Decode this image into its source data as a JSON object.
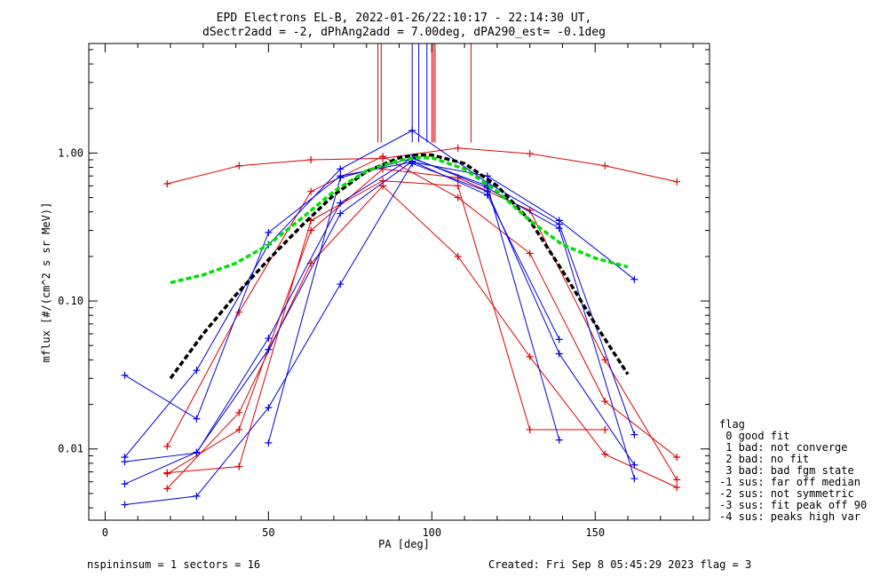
{
  "title": {
    "line1": "EPD Electrons EL-B, 2022-01-26/22:10:17 - 22:14:30 UT,",
    "line2": "dSectr2add = -2, dPhAng2add = 7.00deg, dPA290_est=  -0.1deg"
  },
  "footer": {
    "left": "nspininsum =  1  sectors = 16",
    "right": "Created: Fri Sep  8 05:45:29 2023   flag = 3"
  },
  "legend": {
    "title": "flag",
    "items": [
      " 0 good fit",
      " 1 bad: not converge",
      " 2 bad: no fit",
      " 3 bad: bad fgm state",
      "-1 sus: far off median",
      "-2 sus: not symmetric",
      "-3 sus: fit peak off 90",
      "-4 sus: peaks high var"
    ]
  },
  "chart_data": {
    "type": "line",
    "xlabel": "PA [deg]",
    "ylabel": "mflux [#/(cm^2 s sr MeV)]",
    "xlim": [
      -5,
      185
    ],
    "ylim": [
      0.0033,
      5.5
    ],
    "yscale": "log",
    "xticks": [
      0,
      50,
      100,
      150
    ],
    "yticks": [
      0.01,
      0.1,
      1.0
    ],
    "ytick_labels": [
      "0.01",
      "0.10",
      "1.00"
    ],
    "colors": {
      "red": "#e00000",
      "blue": "#0000e0",
      "black": "#000000",
      "green": "#00e000"
    },
    "series": [
      {
        "color": "red",
        "x": [
          19,
          41,
          63,
          85,
          108,
          130,
          153,
          175
        ],
        "y": [
          0.62,
          0.82,
          0.9,
          0.92,
          1.08,
          0.99,
          0.82,
          0.64
        ]
      },
      {
        "color": "red",
        "x": [
          19,
          41,
          63,
          85,
          108,
          130,
          153,
          175
        ],
        "y": [
          0.0104,
          0.084,
          0.55,
          0.95,
          0.5,
          0.21,
          0.021,
          0.0088
        ]
      },
      {
        "color": "red",
        "x": [
          19,
          41,
          63,
          85,
          108,
          130,
          153,
          175
        ],
        "y": [
          0.0054,
          0.0176,
          0.18,
          0.6,
          0.2,
          0.042,
          0.0092,
          0.0055
        ]
      },
      {
        "color": "red",
        "x": [
          19,
          41,
          63,
          85,
          108,
          130,
          153,
          175
        ],
        "y": [
          0.0068,
          0.0135,
          0.3,
          0.78,
          0.68,
          0.41,
          0.04,
          0.0062
        ]
      },
      {
        "color": "red",
        "x": [
          19,
          41,
          63,
          85,
          108,
          130,
          153
        ],
        "y": [
          0.0069,
          0.0076,
          0.35,
          0.65,
          0.6,
          0.0135,
          0.0135
        ]
      },
      {
        "color": "blue",
        "x": [
          6,
          28,
          50,
          72,
          94,
          117,
          139,
          162
        ],
        "y": [
          0.0315,
          0.016,
          0.29,
          0.7,
          0.87,
          0.7,
          0.35,
          0.14
        ]
      },
      {
        "color": "blue",
        "x": [
          6,
          28,
          50,
          72,
          94,
          117,
          139,
          162
        ],
        "y": [
          0.0088,
          0.034,
          0.24,
          0.78,
          1.42,
          0.63,
          0.33,
          0.0125
        ]
      },
      {
        "color": "blue",
        "x": [
          6,
          28,
          50,
          72,
          94,
          117,
          139,
          162
        ],
        "y": [
          0.0082,
          0.0094,
          0.056,
          0.46,
          0.93,
          0.58,
          0.31,
          0.0063
        ]
      },
      {
        "color": "blue",
        "x": [
          6,
          28,
          50,
          72,
          94,
          117,
          139
        ],
        "y": [
          0.0058,
          0.0095,
          0.047,
          0.39,
          0.88,
          0.52,
          0.055
        ]
      },
      {
        "color": "blue",
        "x": [
          6,
          28,
          50,
          72,
          94,
          117,
          139,
          162
        ],
        "y": [
          0.0042,
          0.0048,
          0.019,
          0.13,
          0.85,
          0.55,
          0.044,
          0.0078
        ]
      },
      {
        "color": "blue",
        "x": [
          50,
          72,
          94,
          117,
          139
        ],
        "y": [
          0.011,
          0.68,
          0.92,
          0.6,
          0.0115
        ]
      }
    ],
    "fits": [
      {
        "color": "black",
        "style": "dashed",
        "x": [
          20,
          30,
          40,
          50,
          60,
          70,
          80,
          90,
          95,
          100,
          110,
          120,
          130,
          140,
          150,
          160
        ],
        "y": [
          0.03,
          0.06,
          0.11,
          0.19,
          0.32,
          0.52,
          0.75,
          0.93,
          0.97,
          0.97,
          0.85,
          0.6,
          0.35,
          0.16,
          0.07,
          0.032
        ]
      },
      {
        "color": "green",
        "style": "dashed",
        "x": [
          20,
          30,
          40,
          50,
          60,
          70,
          80,
          90,
          95,
          100,
          110,
          120,
          130,
          140,
          150,
          160
        ],
        "y": [
          0.133,
          0.15,
          0.18,
          0.24,
          0.36,
          0.55,
          0.76,
          0.89,
          0.93,
          0.93,
          0.78,
          0.55,
          0.35,
          0.24,
          0.195,
          0.17
        ]
      }
    ],
    "markers": [
      {
        "color": "red",
        "x": 83.5
      },
      {
        "color": "red",
        "x": 84.5
      },
      {
        "color": "blue",
        "x": 94.0
      },
      {
        "color": "blue",
        "x": 96.0
      },
      {
        "color": "blue",
        "x": 98.5
      },
      {
        "color": "red",
        "x": 100.0
      },
      {
        "color": "red",
        "x": 100.5
      },
      {
        "color": "red",
        "x": 101.0
      },
      {
        "color": "red",
        "x": 112.0
      }
    ],
    "marker_top": 5.5,
    "marker_bottom": 1.18
  }
}
